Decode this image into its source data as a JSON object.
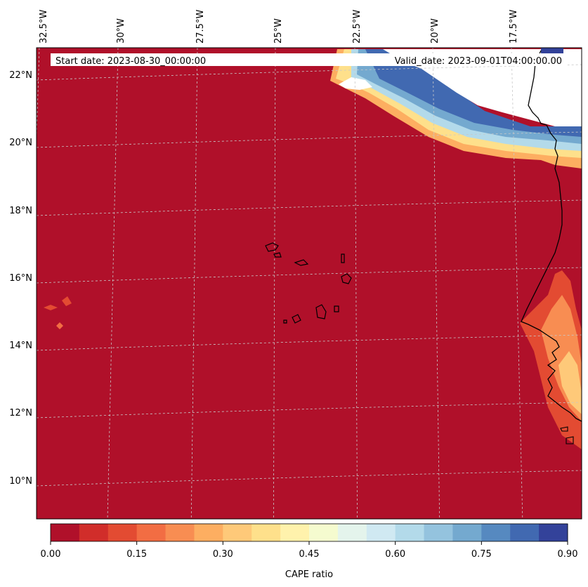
{
  "header": {
    "start_date": "Start date: 2023-08-30_00:00:00",
    "valid_date": "Valid_date: 2023-09-01T04:00:00.00"
  },
  "map": {
    "lon_labels": [
      "32.5°W",
      "30°W",
      "27.5°W",
      "25°W",
      "22.5°W",
      "20°W",
      "17.5°W"
    ],
    "lat_labels": [
      "22°N",
      "20°N",
      "18°N",
      "16°N",
      "14°N",
      "12°N",
      "10°N"
    ],
    "colors": {
      "ocean_fill": "#b0102a",
      "gridline": "#c8c8c8",
      "coast": "#000000"
    }
  },
  "colorbar": {
    "label": "CAPE ratio",
    "tick_labels": [
      "0.00",
      "0.15",
      "0.30",
      "0.45",
      "0.60",
      "0.75",
      "0.90"
    ],
    "colors": [
      "#b0102a",
      "#d12d2a",
      "#e34b32",
      "#f26d43",
      "#f88d52",
      "#fdae61",
      "#fec979",
      "#fee08b",
      "#fff2ac",
      "#f5fbcf",
      "#e4f4ec",
      "#d0e9f2",
      "#b3daea",
      "#94c3de",
      "#74a9cf",
      "#5689c0",
      "#4169b1",
      "#33429a"
    ]
  }
}
